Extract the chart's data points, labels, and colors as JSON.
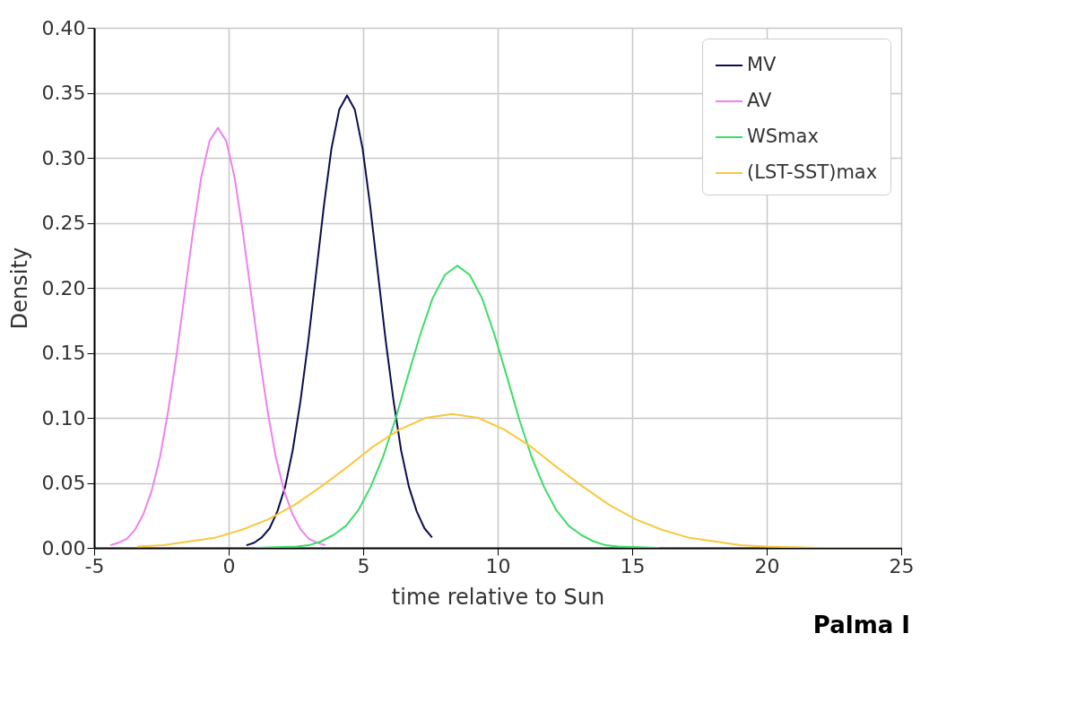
{
  "chart_data": {
    "type": "line",
    "xlabel": "time relative to Sun",
    "ylabel": "Density",
    "xlim": [
      -5,
      25
    ],
    "xticks": [
      -5,
      0,
      5,
      10,
      15,
      20,
      25
    ],
    "ylim": [
      0,
      0.4
    ],
    "yticks": [
      {
        "value": 0,
        "label": "0.00"
      },
      0.05,
      {
        "value": 0.1,
        "label": "0.10"
      },
      0.15,
      {
        "value": 0.2,
        "label": "0.20"
      },
      0.25,
      {
        "value": 0.3,
        "label": "0.30"
      },
      0.35,
      {
        "value": 0.4,
        "label": "0.40"
      }
    ],
    "grid": true,
    "legend": "top right",
    "marker": "none",
    "line_style": "solid",
    "annotations": [
      "Palma I"
    ],
    "series": [
      {
        "name": "MV",
        "color": "#0d0d4f",
        "x": [
          0.66,
          0.95,
          1.23,
          1.52,
          1.81,
          2.1,
          2.38,
          2.67,
          2.96,
          3.25,
          3.54,
          3.82,
          4.11,
          4.4,
          4.69,
          4.98,
          5.26,
          5.55,
          5.84,
          6.13,
          6.41,
          6.7,
          6.99,
          7.28,
          7.56
        ],
        "values": [
          0.002,
          0.004,
          0.008,
          0.015,
          0.028,
          0.047,
          0.075,
          0.113,
          0.159,
          0.211,
          0.263,
          0.307,
          0.337,
          0.348,
          0.337,
          0.307,
          0.263,
          0.211,
          0.159,
          0.113,
          0.075,
          0.047,
          0.028,
          0.015,
          0.008
        ]
      },
      {
        "name": "AV",
        "color": "#ee82ee",
        "x": [
          -4.4,
          -4.09,
          -3.78,
          -3.48,
          -3.17,
          -2.86,
          -2.55,
          -2.25,
          -1.94,
          -1.63,
          -1.32,
          -1.02,
          -0.71,
          -0.4,
          -0.09,
          0.22,
          0.52,
          0.83,
          1.14,
          1.45,
          1.75,
          2.06,
          2.37,
          2.68,
          2.98,
          3.29,
          3.6
        ],
        "values": [
          0.002,
          0.004,
          0.007,
          0.014,
          0.026,
          0.044,
          0.07,
          0.105,
          0.148,
          0.196,
          0.244,
          0.285,
          0.313,
          0.323,
          0.313,
          0.285,
          0.244,
          0.196,
          0.148,
          0.105,
          0.07,
          0.044,
          0.026,
          0.014,
          0.007,
          0.004,
          0.002
        ]
      },
      {
        "name": "WSmax",
        "color": "#3ddc6a",
        "x": [
          1.0,
          2.52,
          2.98,
          3.44,
          3.9,
          4.36,
          4.82,
          5.28,
          5.74,
          6.2,
          6.66,
          7.12,
          7.58,
          8.04,
          8.5,
          8.96,
          9.42,
          9.88,
          10.34,
          10.8,
          11.26,
          11.72,
          12.18,
          12.64,
          13.1,
          13.56,
          14.02,
          14.48,
          16.0
        ],
        "values": [
          0.0,
          0.001,
          0.002,
          0.005,
          0.01,
          0.017,
          0.029,
          0.047,
          0.07,
          0.099,
          0.132,
          0.164,
          0.192,
          0.21,
          0.217,
          0.21,
          0.192,
          0.164,
          0.132,
          0.099,
          0.07,
          0.047,
          0.029,
          0.017,
          0.01,
          0.005,
          0.002,
          0.001,
          0.0
        ]
      },
      {
        "name": "(LST-SST)max",
        "color": "#f7c940",
        "x": [
          -3.4,
          -2.425,
          -1.45,
          -0.475,
          0.5,
          1.475,
          2.45,
          3.425,
          4.4,
          5.375,
          6.35,
          7.325,
          8.3,
          9.275,
          10.25,
          11.225,
          12.2,
          13.175,
          14.15,
          15.125,
          16.1,
          17.075,
          18.05,
          19.025,
          20.0,
          22.0,
          25.0
        ],
        "values": [
          0.001,
          0.002,
          0.005,
          0.008,
          0.014,
          0.022,
          0.033,
          0.047,
          0.062,
          0.078,
          0.091,
          0.1,
          0.103,
          0.1,
          0.091,
          0.078,
          0.062,
          0.047,
          0.033,
          0.022,
          0.014,
          0.008,
          0.005,
          0.002,
          0.001,
          0.0,
          0.0
        ]
      }
    ]
  }
}
